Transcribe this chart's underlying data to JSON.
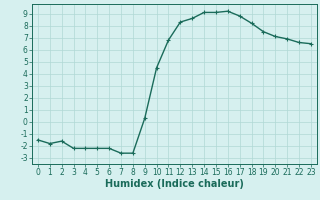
{
  "x": [
    0,
    1,
    2,
    3,
    4,
    5,
    6,
    7,
    8,
    9,
    10,
    11,
    12,
    13,
    14,
    15,
    16,
    17,
    18,
    19,
    20,
    21,
    22,
    23
  ],
  "y": [
    -1.5,
    -1.8,
    -1.6,
    -2.2,
    -2.2,
    -2.2,
    -2.2,
    -2.6,
    -2.6,
    0.3,
    4.5,
    6.8,
    8.3,
    8.6,
    9.1,
    9.1,
    9.2,
    8.8,
    8.2,
    7.5,
    7.1,
    6.9,
    6.6,
    6.5
  ],
  "line_color": "#1a6b5a",
  "marker": "+",
  "marker_size": 3,
  "bg_color": "#d6f0ef",
  "grid_color": "#b0d8d5",
  "xlabel": "Humidex (Indice chaleur)",
  "ylabel": "",
  "xlim": [
    -0.5,
    23.5
  ],
  "ylim": [
    -3.5,
    9.8
  ],
  "xticks": [
    0,
    1,
    2,
    3,
    4,
    5,
    6,
    7,
    8,
    9,
    10,
    11,
    12,
    13,
    14,
    15,
    16,
    17,
    18,
    19,
    20,
    21,
    22,
    23
  ],
  "yticks": [
    -3,
    -2,
    -1,
    0,
    1,
    2,
    3,
    4,
    5,
    6,
    7,
    8,
    9
  ],
  "tick_color": "#1a6b5a",
  "tick_fontsize": 5.5,
  "xlabel_fontsize": 7.0,
  "line_width": 1.0,
  "marker_linewidth": 0.8
}
